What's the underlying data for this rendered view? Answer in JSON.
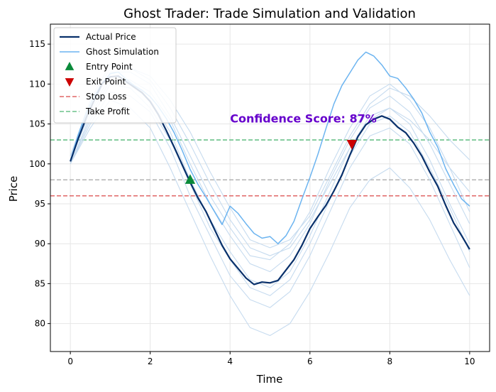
{
  "chart_data": {
    "type": "line",
    "title": "Ghost Trader: Trade Simulation and Validation",
    "xlabel": "Time",
    "ylabel": "Price",
    "xlim": [
      -0.5,
      10.5
    ],
    "ylim": [
      76.5,
      117.5
    ],
    "xticks": [
      0,
      2,
      4,
      6,
      8,
      10
    ],
    "yticks": [
      80,
      85,
      90,
      95,
      100,
      105,
      110,
      115
    ],
    "grid": true,
    "legend_position": "upper-left",
    "series": [
      {
        "name": "Actual Price",
        "color": "#08306b",
        "x": [
          0,
          0.2,
          0.4,
          0.6,
          0.8,
          1.0,
          1.2,
          1.4,
          1.6,
          1.8,
          2.0,
          2.2,
          2.4,
          2.6,
          2.8,
          3.0,
          3.2,
          3.4,
          3.6,
          3.8,
          4.0,
          4.2,
          4.4,
          4.6,
          4.8,
          5.0,
          5.2,
          5.4,
          5.6,
          5.8,
          6.0,
          6.2,
          6.4,
          6.6,
          6.8,
          7.0,
          7.2,
          7.4,
          7.6,
          7.8,
          8.0,
          8.2,
          8.4,
          8.6,
          8.8,
          9.0,
          9.2,
          9.4,
          9.6,
          9.8,
          10.0
        ],
        "y": [
          100.3,
          103.2,
          105.8,
          108.0,
          110.1,
          110.9,
          111.0,
          110.3,
          109.6,
          108.9,
          107.8,
          106.2,
          104.2,
          102.1,
          99.9,
          97.7,
          95.7,
          94.0,
          91.9,
          89.8,
          88.1,
          86.9,
          85.7,
          84.9,
          85.2,
          85.1,
          85.4,
          86.7,
          88.0,
          89.8,
          91.9,
          93.4,
          94.8,
          96.6,
          98.6,
          101.1,
          103.4,
          104.9,
          105.6,
          106.0,
          105.6,
          104.6,
          103.9,
          102.6,
          101.0,
          99.0,
          97.2,
          94.8,
          92.6,
          91.0,
          89.3
        ]
      },
      {
        "name": "Ghost Simulation",
        "color": "#6cb4f0",
        "x": [
          0,
          0.2,
          0.4,
          0.6,
          0.8,
          1.0,
          1.2,
          1.4,
          1.6,
          1.8,
          2.0,
          2.2,
          2.4,
          2.6,
          2.8,
          3.0,
          3.2,
          3.4,
          3.6,
          3.8,
          4.0,
          4.2,
          4.4,
          4.6,
          4.8,
          5.0,
          5.2,
          5.4,
          5.6,
          5.8,
          6.0,
          6.2,
          6.4,
          6.6,
          6.8,
          7.0,
          7.2,
          7.4,
          7.6,
          7.8,
          8.0,
          8.2,
          8.4,
          8.6,
          8.8,
          9.0,
          9.2,
          9.4,
          9.6,
          9.8,
          10.0
        ],
        "y": [
          100.4,
          103.7,
          106.4,
          108.5,
          110.1,
          111.3,
          111.5,
          110.6,
          109.8,
          109.2,
          108.4,
          107.2,
          105.7,
          103.9,
          101.7,
          99.3,
          97.4,
          95.8,
          94.1,
          92.4,
          94.7,
          93.8,
          92.5,
          91.3,
          90.7,
          90.9,
          90.0,
          91.0,
          92.8,
          95.6,
          98.3,
          101.2,
          104.4,
          107.5,
          109.8,
          111.4,
          113.0,
          114.0,
          113.5,
          112.4,
          111.0,
          110.7,
          109.5,
          108.1,
          106.4,
          104.0,
          102.1,
          99.4,
          97.4,
          95.6,
          94.7
        ]
      },
      {
        "name": "",
        "color": "#c6dbef",
        "x": [
          0,
          0.5,
          1,
          1.5,
          2,
          2.5,
          3,
          3.5,
          4,
          4.5,
          5,
          5.5,
          6,
          6.5,
          7,
          7.5,
          8,
          8.5,
          9,
          9.5,
          10
        ],
        "y": [
          100.0,
          106.0,
          110.5,
          110.0,
          108.0,
          104.0,
          98.0,
          93.0,
          89.0,
          85.5,
          84.5,
          86.5,
          91.0,
          96.5,
          102.0,
          106.0,
          107.0,
          105.0,
          100.5,
          95.0,
          90.0
        ]
      },
      {
        "name": "",
        "color": "#c6dbef",
        "x": [
          0,
          0.5,
          1,
          1.5,
          2,
          2.5,
          3,
          3.5,
          4,
          4.5,
          5,
          5.5,
          6,
          6.5,
          7,
          7.5,
          8,
          8.5,
          9,
          9.5,
          10
        ],
        "y": [
          100.5,
          107.0,
          111.5,
          111.5,
          110.0,
          106.0,
          101.0,
          96.0,
          92.0,
          88.5,
          88.0,
          90.0,
          94.0,
          99.5,
          104.5,
          108.5,
          110.0,
          108.0,
          104.5,
          99.5,
          94.0
        ]
      },
      {
        "name": "",
        "color": "#c6dbef",
        "x": [
          0,
          0.5,
          1,
          1.5,
          2,
          2.5,
          3,
          3.5,
          4,
          4.5,
          5,
          5.5,
          6,
          6.5,
          7,
          7.5,
          8,
          8.5,
          9,
          9.5,
          10
        ],
        "y": [
          100.0,
          105.0,
          109.0,
          108.5,
          106.5,
          102.0,
          96.0,
          91.0,
          86.0,
          83.0,
          82.0,
          84.0,
          88.5,
          94.0,
          99.5,
          103.5,
          104.5,
          102.5,
          98.0,
          92.5,
          87.0
        ]
      },
      {
        "name": "",
        "color": "#c6dbef",
        "x": [
          0,
          0.5,
          1,
          1.5,
          2,
          2.5,
          3,
          3.5,
          4,
          4.5,
          5,
          5.5,
          6,
          6.5,
          7,
          7.5,
          8,
          8.5,
          9,
          9.5,
          10
        ],
        "y": [
          101.0,
          108.0,
          112.5,
          112.0,
          111.0,
          108.0,
          104.0,
          99.0,
          94.5,
          90.5,
          89.5,
          90.5,
          93.5,
          98.5,
          103.5,
          107.5,
          109.5,
          108.5,
          106.0,
          103.0,
          100.5
        ]
      },
      {
        "name": "",
        "color": "#c6dbef",
        "x": [
          0,
          0.5,
          1,
          1.5,
          2,
          2.5,
          3,
          3.5,
          4,
          4.5,
          5,
          5.5,
          6,
          6.5,
          7,
          7.5,
          8,
          8.5,
          9,
          9.5,
          10
        ],
        "y": [
          100.0,
          104.5,
          108.0,
          107.0,
          104.5,
          99.5,
          94.0,
          88.5,
          83.5,
          79.5,
          78.5,
          80.0,
          84.0,
          89.0,
          94.5,
          98.0,
          99.5,
          97.0,
          93.0,
          88.0,
          83.5
        ]
      },
      {
        "name": "",
        "color": "#c6dbef",
        "x": [
          0,
          0.5,
          1,
          1.5,
          2,
          2.5,
          3,
          3.5,
          4,
          4.5,
          5,
          5.5,
          6,
          6.5,
          7,
          7.5,
          8,
          8.5,
          9,
          9.5,
          10
        ],
        "y": [
          100.5,
          106.5,
          111.0,
          110.5,
          109.0,
          105.5,
          100.0,
          95.0,
          91.0,
          87.5,
          86.5,
          88.5,
          92.5,
          98.0,
          103.0,
          107.0,
          108.5,
          106.5,
          102.5,
          97.5,
          92.5
        ]
      },
      {
        "name": "",
        "color": "#c6dbef",
        "x": [
          0,
          0.5,
          1,
          1.5,
          2,
          2.5,
          3,
          3.5,
          4,
          4.5,
          5,
          5.5,
          6,
          6.5,
          7,
          7.5,
          8,
          8.5,
          9,
          9.5,
          10
        ],
        "y": [
          100.0,
          105.5,
          110.0,
          109.5,
          107.0,
          103.0,
          97.5,
          92.0,
          88.0,
          84.5,
          83.5,
          85.5,
          90.0,
          95.5,
          101.0,
          105.0,
          106.0,
          104.0,
          99.5,
          94.5,
          89.0
        ]
      },
      {
        "name": "",
        "color": "#c6dbef",
        "x": [
          0,
          0.5,
          1,
          1.5,
          2,
          2.5,
          3,
          3.5,
          4,
          4.5,
          5,
          5.5,
          6,
          6.5,
          7,
          7.5,
          8,
          8.5,
          9,
          9.5,
          10
        ],
        "y": [
          101.0,
          107.5,
          112.0,
          112.0,
          110.5,
          107.0,
          102.5,
          97.5,
          93.0,
          89.5,
          88.5,
          89.5,
          93.0,
          97.5,
          102.0,
          105.5,
          107.0,
          105.5,
          103.0,
          99.5,
          96.5
        ]
      }
    ],
    "hlines": [
      {
        "name": "Stop Loss",
        "y": 96,
        "color": "#e06666"
      },
      {
        "name": "Take Profit",
        "y": 103,
        "color": "#6cc28a"
      },
      {
        "name": "",
        "y": 98,
        "color": "#b3b3b3"
      }
    ],
    "markers": [
      {
        "name": "Entry Point",
        "x": 3.0,
        "y": 98.0,
        "shape": "triangle-up",
        "color": "#0a8a3a"
      },
      {
        "name": "Exit Point",
        "x": 7.05,
        "y": 102.5,
        "shape": "triangle-down",
        "color": "#cc0000"
      }
    ],
    "annotation": {
      "text": "Confidence Score: 87%",
      "x": 4.0,
      "y": 105.0,
      "color": "#6600cc"
    },
    "legend": [
      {
        "label": "Actual Price",
        "kind": "line",
        "color": "#08306b"
      },
      {
        "label": "Ghost Simulation",
        "kind": "line",
        "color": "#6cb4f0"
      },
      {
        "label": "Entry Point",
        "kind": "triangle-up",
        "color": "#0a8a3a"
      },
      {
        "label": "Exit Point",
        "kind": "triangle-down",
        "color": "#cc0000"
      },
      {
        "label": "Stop Loss",
        "kind": "dashed",
        "color": "#e06666"
      },
      {
        "label": "Take Profit",
        "kind": "dashed",
        "color": "#6cc28a"
      }
    ]
  }
}
